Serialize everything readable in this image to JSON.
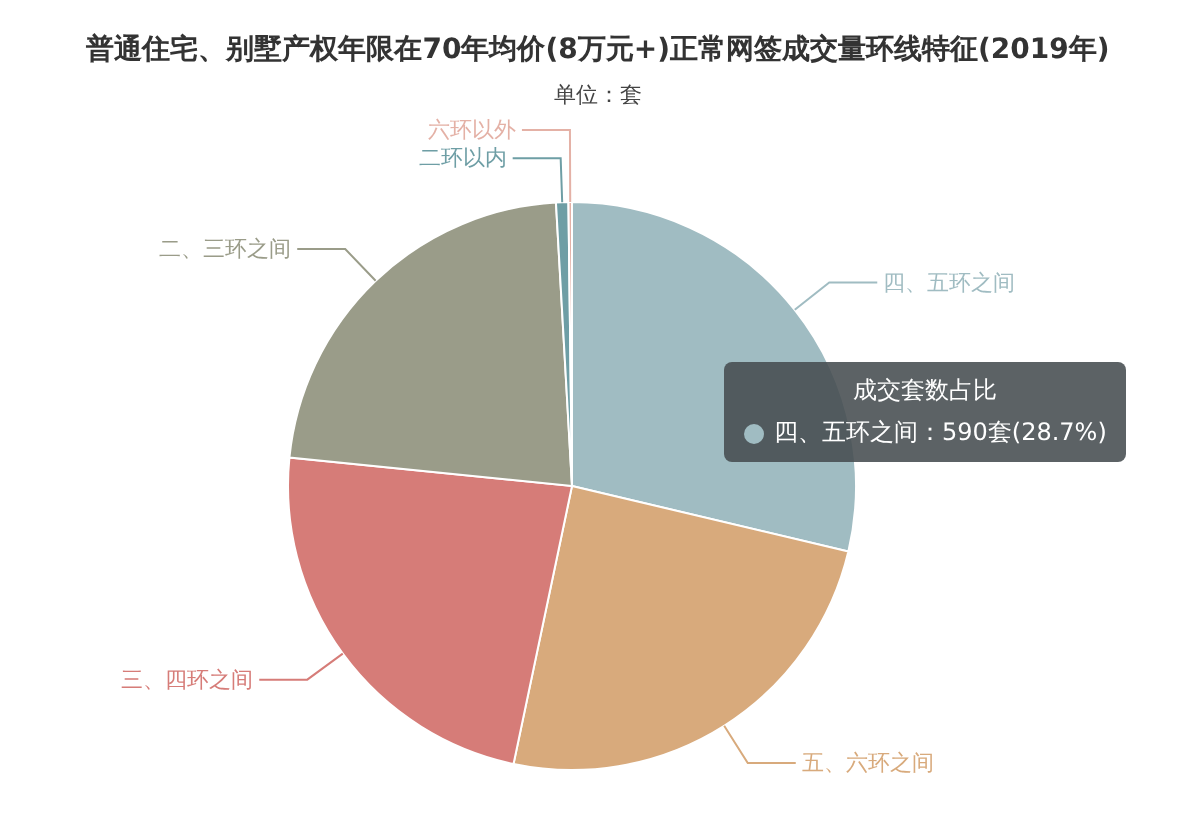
{
  "chart_data": {
    "type": "pie",
    "title": "普通住宅、别墅产权年限在70年均价(8万元+)正常网签成交量环线特征(2019年)",
    "subtitle": "单位：套",
    "categories": [
      "四、五环之间",
      "五、六环之间",
      "三、四环之间",
      "二、三环之间",
      "二环以内",
      "六环以外"
    ],
    "values": [
      28.7,
      24.6,
      23.3,
      22.5,
      0.7,
      0.2
    ],
    "colors": [
      "#a0bcc2",
      "#d8aa7c",
      "#d67c78",
      "#9a9c89",
      "#6e9ea5",
      "#e4b1a6"
    ],
    "annotations": [
      "成交套数占比",
      "四、五环之间：590套(28.7%)"
    ],
    "legend": false
  }
}
